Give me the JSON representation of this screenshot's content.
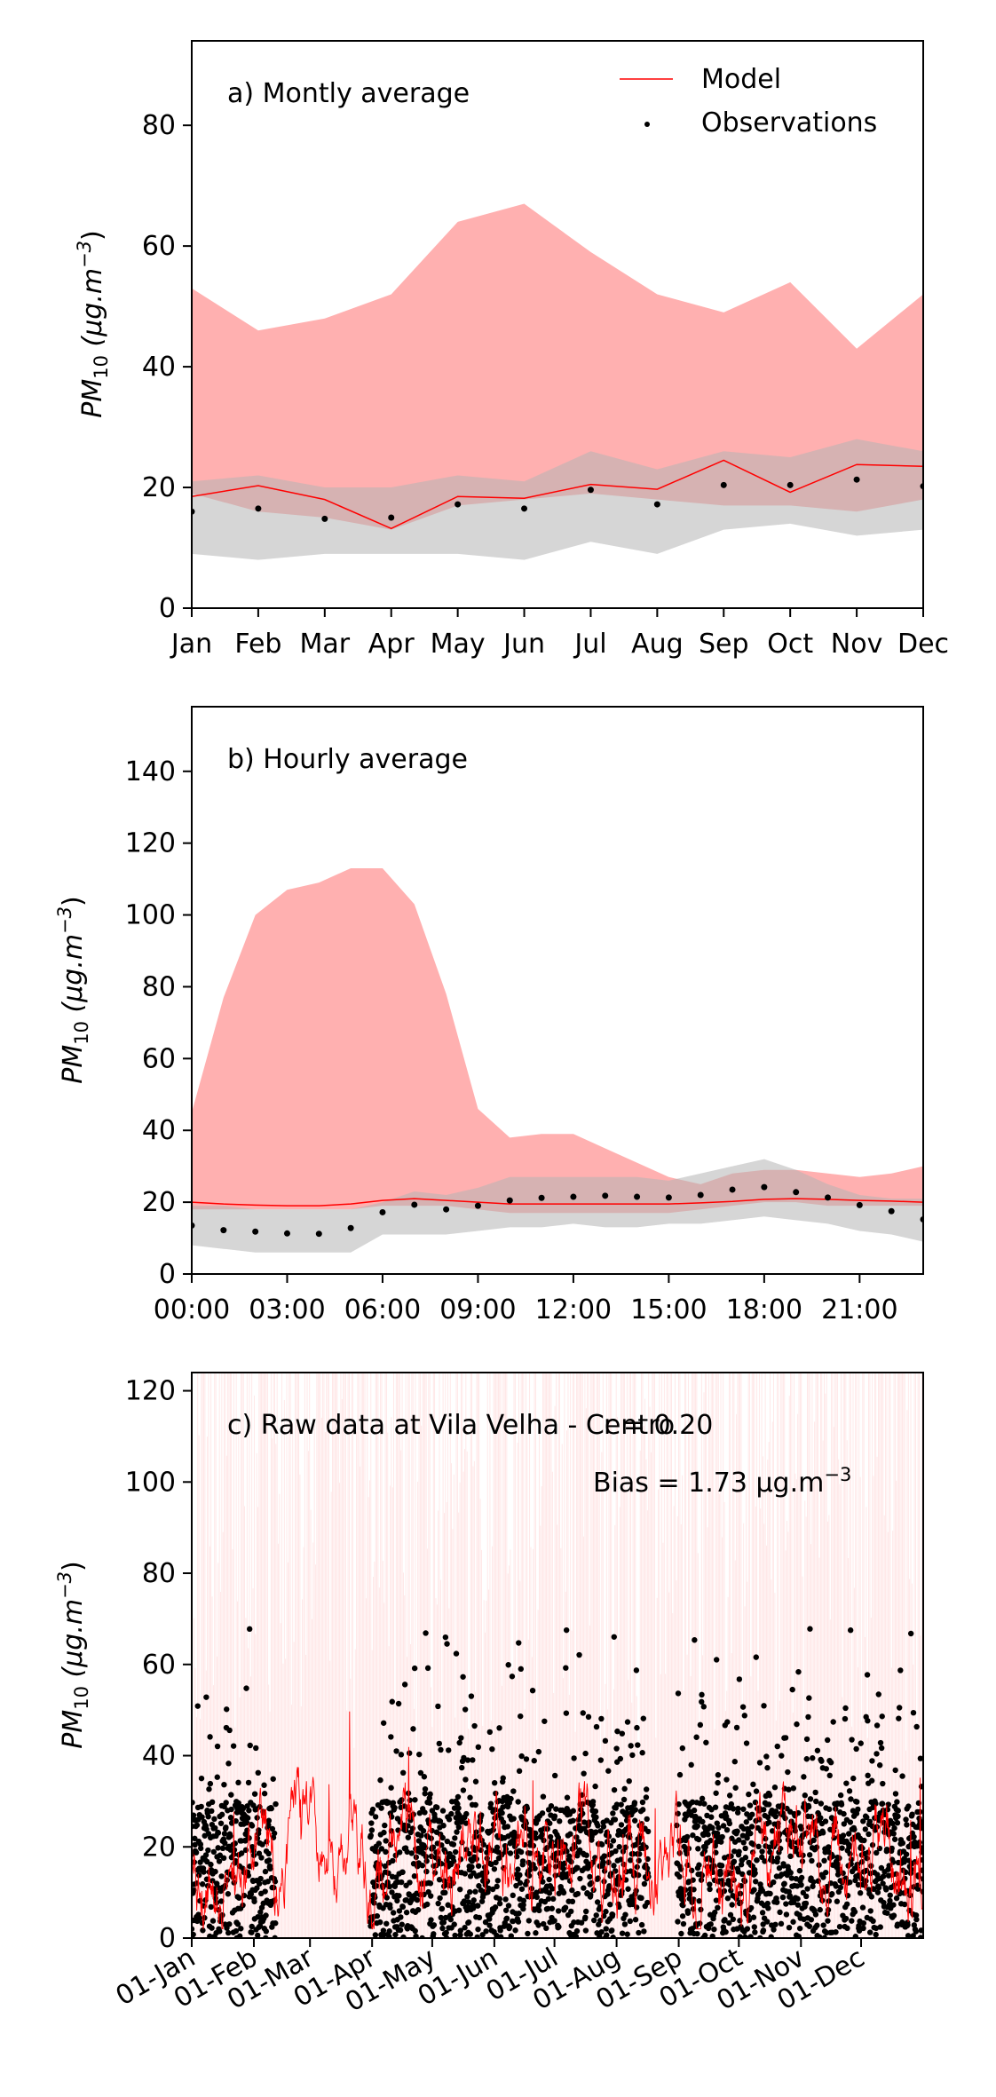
{
  "chart_data": [
    {
      "type": "line",
      "panel_label": "a) Montly average",
      "ylabel_main": "PM",
      "ylabel_sub": "10",
      "ylabel_units": " (μg.m",
      "ylabel_exp": "−3",
      "ylabel_close": ")",
      "ylim": [
        0,
        94
      ],
      "yticks": [
        0,
        20,
        40,
        60,
        80
      ],
      "categories": [
        "Jan",
        "Feb",
        "Mar",
        "Apr",
        "May",
        "Jun",
        "Jul",
        "Aug",
        "Sep",
        "Oct",
        "Nov",
        "Dec"
      ],
      "legend": {
        "placement": "top-right",
        "model_label": "Model",
        "obs_label": "Observations"
      },
      "model_band": {
        "lower": [
          19,
          16,
          15,
          13,
          17,
          18,
          19,
          18,
          17,
          17,
          16,
          18
        ],
        "upper": [
          53,
          46,
          48,
          52,
          64,
          67,
          59,
          52,
          49,
          54,
          43,
          52
        ]
      },
      "obs_band": {
        "lower": [
          9,
          8,
          9,
          9,
          9,
          8,
          11,
          9,
          13,
          14,
          12,
          13
        ],
        "upper": [
          21,
          22,
          20,
          20,
          22,
          21,
          26,
          23,
          26,
          25,
          28,
          26
        ]
      },
      "model_line": [
        18.5,
        20.3,
        18,
        13.2,
        18.5,
        18.2,
        20.5,
        19.7,
        24.5,
        19.2,
        23.8,
        23.5
      ],
      "observations": [
        16,
        16.5,
        14.8,
        15,
        17.2,
        16.5,
        19.6,
        17.2,
        20.4,
        20.4,
        21.3,
        20.2
      ]
    },
    {
      "type": "line",
      "panel_label": "b) Hourly average",
      "ylabel_main": "PM",
      "ylabel_sub": "10",
      "ylabel_units": " (μg.m",
      "ylabel_exp": "−3",
      "ylabel_close": ")",
      "ylim": [
        0,
        158
      ],
      "yticks": [
        0,
        20,
        40,
        60,
        80,
        100,
        120,
        140
      ],
      "xticks": [
        "00:00",
        "03:00",
        "06:00",
        "09:00",
        "12:00",
        "15:00",
        "18:00",
        "21:00"
      ],
      "x_hours": [
        0,
        1,
        2,
        3,
        4,
        5,
        6,
        7,
        8,
        9,
        10,
        11,
        12,
        13,
        14,
        15,
        16,
        17,
        18,
        19,
        20,
        21,
        22,
        23
      ],
      "model_band": {
        "lower": [
          18,
          18,
          18,
          18,
          18,
          18,
          19,
          19,
          19,
          18,
          17,
          17,
          17,
          17,
          17,
          17,
          18,
          19,
          20,
          20,
          19,
          19,
          19,
          19
        ],
        "upper": [
          45,
          77,
          100,
          107,
          109,
          113,
          113,
          103,
          78,
          46,
          38,
          39,
          39,
          35,
          31,
          27,
          25,
          28,
          29,
          29,
          28,
          27,
          28,
          30
        ]
      },
      "obs_band": {
        "lower": [
          8,
          7,
          6,
          6,
          6,
          6,
          11,
          11,
          11,
          12,
          13,
          13,
          14,
          13,
          13,
          14,
          14,
          15,
          16,
          15,
          14,
          12,
          11,
          9
        ],
        "upper": [
          19,
          19,
          18,
          18,
          18,
          18,
          20,
          23,
          22,
          24,
          27,
          27,
          27,
          27,
          27,
          26,
          28,
          30,
          32,
          29,
          25,
          22,
          21,
          21
        ]
      },
      "model_line": [
        20,
        19.5,
        19.2,
        19,
        19,
        19.5,
        20.5,
        21,
        20.5,
        20,
        19.5,
        19.5,
        19.5,
        19.5,
        19.5,
        19.5,
        19.8,
        20.2,
        20.8,
        21,
        20.8,
        20.5,
        20.3,
        20
      ],
      "observations": [
        13.5,
        12.2,
        11.8,
        11.3,
        11.2,
        12.8,
        17.2,
        19.3,
        18,
        19,
        20.5,
        21.2,
        21.5,
        21.8,
        21.5,
        21.3,
        22,
        23.5,
        24.2,
        22.8,
        21.3,
        19.2,
        17.5,
        15.2
      ]
    },
    {
      "type": "line",
      "panel_label": "c) Raw data at Vila Velha - Centro",
      "r_text": "r = 0.20",
      "bias_text": "Bias = 1.73 μg.m",
      "bias_exp": "−3",
      "ylabel_main": "PM",
      "ylabel_sub": "10",
      "ylabel_units": " (μg.m",
      "ylabel_exp": "−3",
      "ylabel_close": ")",
      "ylim": [
        0,
        124
      ],
      "yticks": [
        0,
        20,
        40,
        60,
        80,
        100,
        120
      ],
      "x_range_days": [
        0,
        365
      ],
      "xticks": [
        "01-Jan",
        "01-Feb",
        "01-Mar",
        "01-Apr",
        "01-May",
        "01-Jun",
        "01-Jul",
        "01-Aug",
        "01-Sep",
        "01-Oct",
        "01-Nov",
        "01-Dec"
      ],
      "xtick_days": [
        0,
        31,
        59,
        90,
        120,
        151,
        181,
        212,
        243,
        273,
        304,
        334
      ],
      "obs_gaps_days": [
        [
          42,
          89
        ],
        [
          228,
          242
        ]
      ],
      "model_series_note": "",
      "observation_color": "#000000",
      "model_color": "#ff0000",
      "spread_color": "#ffd0d0"
    }
  ]
}
